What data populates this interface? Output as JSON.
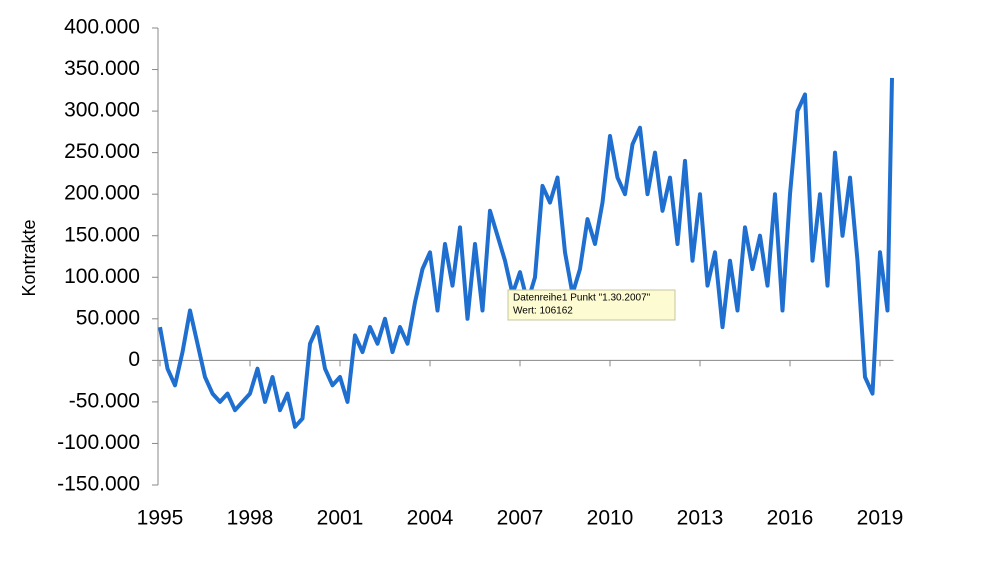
{
  "chart_data": {
    "type": "line",
    "y_label": "Kontrakte",
    "xlim": [
      1995,
      2019.45
    ],
    "xticks": [
      1995,
      1998,
      2001,
      2004,
      2007,
      2010,
      2013,
      2016,
      2019
    ],
    "ylim": [
      -150000,
      400000
    ],
    "yticks": [
      {
        "value": -150000,
        "label": "-150.000"
      },
      {
        "value": -100000,
        "label": "-100.000"
      },
      {
        "value": -50000,
        "label": "-50.000"
      },
      0,
      {
        "value": 50000,
        "label": "50.000"
      },
      {
        "value": 100000,
        "label": "100.000"
      },
      {
        "value": 150000,
        "label": "150.000"
      },
      {
        "value": 200000,
        "label": "200.000"
      },
      {
        "value": 250000,
        "label": "250.000"
      },
      {
        "value": 300000,
        "label": "300.000"
      },
      {
        "value": 350000,
        "label": "350.000"
      },
      {
        "value": 400000,
        "label": "400.000"
      }
    ],
    "series": [
      {
        "color": "#1f6fd0",
        "x": [
          1995.0,
          1995.25,
          1995.5,
          1995.75,
          1996.0,
          1996.25,
          1996.5,
          1996.75,
          1997.0,
          1997.25,
          1997.5,
          1997.75,
          1998.0,
          1998.25,
          1998.5,
          1998.75,
          1999.0,
          1999.25,
          1999.5,
          1999.75,
          2000.0,
          2000.25,
          2000.5,
          2000.75,
          2001.0,
          2001.25,
          2001.5,
          2001.75,
          2002.0,
          2002.25,
          2002.5,
          2002.75,
          2003.0,
          2003.25,
          2003.5,
          2003.75,
          2004.0,
          2004.25,
          2004.5,
          2004.75,
          2005.0,
          2005.25,
          2005.5,
          2005.75,
          2006.0,
          2006.25,
          2006.5,
          2006.75,
          2007.0,
          2007.25,
          2007.5,
          2007.75,
          2008.0,
          2008.25,
          2008.5,
          2008.75,
          2009.0,
          2009.25,
          2009.5,
          2009.75,
          2010.0,
          2010.25,
          2010.5,
          2010.75,
          2011.0,
          2011.25,
          2011.5,
          2011.75,
          2012.0,
          2012.25,
          2012.5,
          2012.75,
          2013.0,
          2013.25,
          2013.5,
          2013.75,
          2014.0,
          2014.25,
          2014.5,
          2014.75,
          2015.0,
          2015.25,
          2015.5,
          2015.75,
          2016.0,
          2016.25,
          2016.5,
          2016.75,
          2017.0,
          2017.25,
          2017.5,
          2017.75,
          2018.0,
          2018.25,
          2018.5,
          2018.75,
          2019.0,
          2019.25,
          2019.4
        ],
        "values": [
          40000,
          -10000,
          -30000,
          10000,
          60000,
          20000,
          -20000,
          -40000,
          -50000,
          -40000,
          -60000,
          -50000,
          -40000,
          -10000,
          -50000,
          -20000,
          -60000,
          -40000,
          -80000,
          -70000,
          20000,
          40000,
          -10000,
          -30000,
          -20000,
          -50000,
          30000,
          10000,
          40000,
          20000,
          50000,
          10000,
          40000,
          20000,
          70000,
          110000,
          130000,
          60000,
          140000,
          90000,
          160000,
          50000,
          140000,
          60000,
          180000,
          150000,
          120000,
          80000,
          106162,
          70000,
          100000,
          210000,
          190000,
          220000,
          130000,
          80000,
          110000,
          170000,
          140000,
          190000,
          270000,
          220000,
          200000,
          260000,
          280000,
          200000,
          250000,
          180000,
          220000,
          140000,
          240000,
          120000,
          200000,
          90000,
          130000,
          40000,
          120000,
          60000,
          160000,
          110000,
          150000,
          90000,
          200000,
          60000,
          200000,
          300000,
          320000,
          120000,
          200000,
          90000,
          250000,
          150000,
          220000,
          120000,
          -20000,
          -40000,
          130000,
          60000,
          340000
        ]
      }
    ],
    "tooltip": {
      "title": "Datenreihe1 Punkt \"1.30.2007\"",
      "value_text": "Wert: 106162"
    }
  }
}
